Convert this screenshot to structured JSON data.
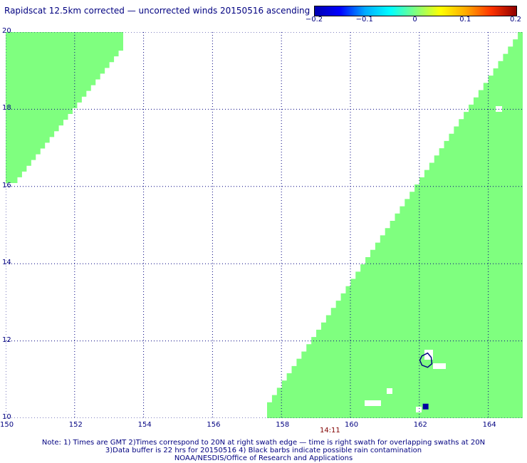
{
  "title": "Rapidscat 12.5km corrected — uncorrected winds 20150516 ascending",
  "colorbar": {
    "ticks": [
      "−0.2",
      "−0.1",
      "0",
      "0.1",
      "0.2"
    ],
    "tick_values": [
      -0.2,
      -0.1,
      0,
      0.1,
      0.2
    ],
    "range": [
      -0.2,
      0.2
    ],
    "colors": [
      "#0000b0",
      "#0000ff",
      "#00aaff",
      "#00ffff",
      "#7fff7f",
      "#ffff00",
      "#ffaa00",
      "#ff3300",
      "#900000"
    ]
  },
  "map": {
    "lon_range": [
      150,
      165
    ],
    "lat_range": [
      10,
      20
    ],
    "lon_ticks": [
      "150",
      "152",
      "154",
      "156",
      "158",
      "160",
      "162",
      "164"
    ],
    "lat_ticks": [
      "10",
      "12",
      "14",
      "16",
      "18",
      "20"
    ],
    "grid_color": "#000080",
    "swath_color": "#7fff7f",
    "swath_meaning": "difference near 0",
    "swath_time": "14:11",
    "swath_time_lon": 159.4,
    "features": {
      "contour_center": [
        162.2,
        11.5
      ],
      "dark_blue_cell": [
        162.1,
        10.3
      ]
    }
  },
  "notes": [
    "Note: 1) Times are GMT 2)Times correspond to 20N at right swath edge — time is right swath for overlapping swaths at 20N",
    "3)Data buffer is 22 hrs for 20150516 4) Black barbs indicate possible rain contamination",
    "NOAA/NESDIS/Office of Research and Applications"
  ]
}
